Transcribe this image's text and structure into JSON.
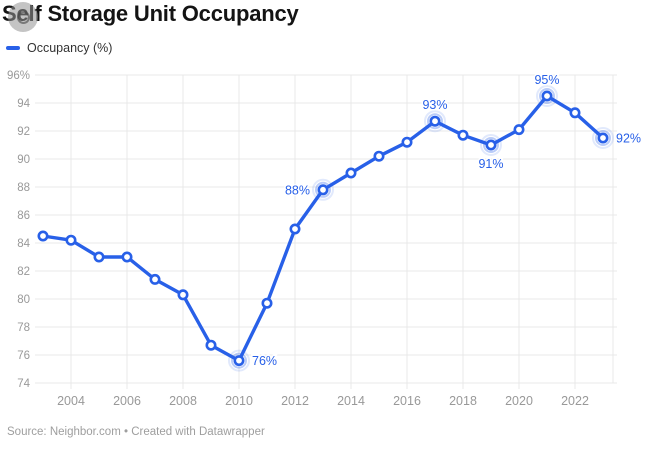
{
  "header": {
    "title": "Self Storage Unit Occupancy"
  },
  "legend": {
    "items": [
      {
        "label": "Occupancy (%)",
        "color": "#2860e8"
      }
    ]
  },
  "footer": {
    "source": "Source: Neighbor.com • Created with Datawrapper"
  },
  "icons": {
    "cursor_overlay": "cursor-halo-icon"
  },
  "colors": {
    "line": "#2860e8",
    "marker_fill": "#ffffff",
    "halo": "rgba(40,96,232,0.32)",
    "halo_outer": "rgba(40,96,232,0.14)",
    "grid": "#e9e9e9",
    "tick_text": "#999999",
    "annotation_text": "#2860e8"
  },
  "chart_data": {
    "type": "line",
    "title": "Self Storage Unit Occupancy",
    "xlabel": "",
    "ylabel": "Occupancy (%)",
    "x": [
      2003,
      2004,
      2005,
      2006,
      2007,
      2008,
      2009,
      2010,
      2011,
      2012,
      2013,
      2014,
      2015,
      2016,
      2017,
      2018,
      2019,
      2020,
      2021,
      2022,
      2023
    ],
    "series": [
      {
        "name": "Occupancy (%)",
        "values": [
          84.5,
          84.2,
          83.0,
          83.0,
          81.4,
          80.3,
          76.7,
          75.6,
          79.7,
          85.0,
          87.8,
          89.0,
          90.2,
          91.2,
          92.7,
          91.7,
          91.0,
          92.1,
          94.5,
          93.3,
          91.5
        ]
      }
    ],
    "ylim": [
      74,
      96
    ],
    "yticks": [
      74,
      76,
      78,
      80,
      82,
      84,
      86,
      88,
      90,
      92,
      94,
      96
    ],
    "ytick_suffix_on_max": "%",
    "xticks": [
      2004,
      2006,
      2008,
      2010,
      2012,
      2014,
      2016,
      2018,
      2020,
      2022
    ],
    "grid": true,
    "legend_position": "top-left",
    "annotations": [
      {
        "year": 2010,
        "text": "76%",
        "position": "right"
      },
      {
        "year": 2013,
        "text": "88%",
        "position": "left"
      },
      {
        "year": 2017,
        "text": "93%",
        "position": "above"
      },
      {
        "year": 2019,
        "text": "91%",
        "position": "below"
      },
      {
        "year": 2021,
        "text": "95%",
        "position": "above"
      },
      {
        "year": 2023,
        "text": "92%",
        "position": "right"
      }
    ]
  }
}
